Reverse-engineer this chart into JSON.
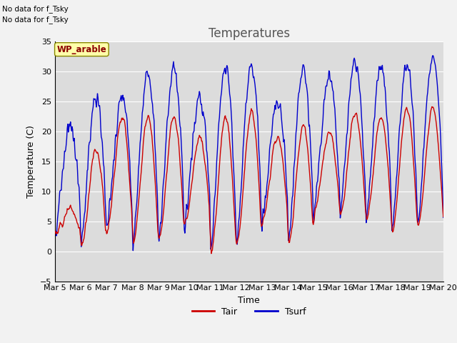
{
  "title": "Temperatures",
  "xlabel": "Time",
  "ylabel": "Temperature (C)",
  "ylim": [
    -5,
    35
  ],
  "xlim": [
    0,
    360
  ],
  "xtick_labels": [
    "Mar 5",
    "Mar 6",
    "Mar 7",
    "Mar 8",
    "Mar 9",
    "Mar 10",
    "Mar 11",
    "Mar 12",
    "Mar 13",
    "Mar 14",
    "Mar 15",
    "Mar 16",
    "Mar 17",
    "Mar 18",
    "Mar 19",
    "Mar 20"
  ],
  "xtick_positions": [
    0,
    24,
    48,
    72,
    96,
    120,
    144,
    168,
    192,
    216,
    240,
    264,
    288,
    312,
    336,
    360
  ],
  "color_tair": "#cc0000",
  "color_tsurf": "#0000cc",
  "legend_labels": [
    "Tair",
    "Tsurf"
  ],
  "no_data_text1": "No data for f_Tsky",
  "no_data_text2": "No data for f_Tsky",
  "wp_label": "WP_arable",
  "background_color": "#dcdcdc",
  "grid_color": "#ffffff",
  "title_fontsize": 12,
  "label_fontsize": 9,
  "tick_fontsize": 8
}
